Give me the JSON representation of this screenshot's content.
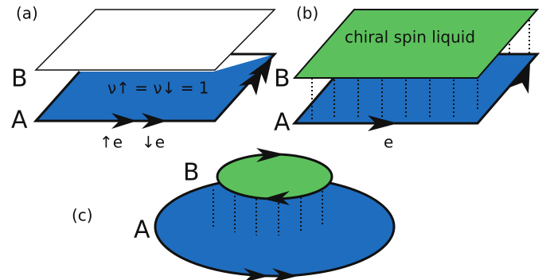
{
  "panels": [
    {
      "label": "(a)",
      "layer_a": "A",
      "layer_b": "B",
      "filling": "ν↑ = ν↓ = 1",
      "edge_labels": [
        "↑e",
        "↓e"
      ]
    },
    {
      "label": "(b)",
      "layer_a": "A",
      "layer_b": "B",
      "top_layer": "chiral spin liquid",
      "edge_label": "e"
    },
    {
      "label": "(c)",
      "layer_a": "A",
      "layer_b": "B"
    }
  ]
}
